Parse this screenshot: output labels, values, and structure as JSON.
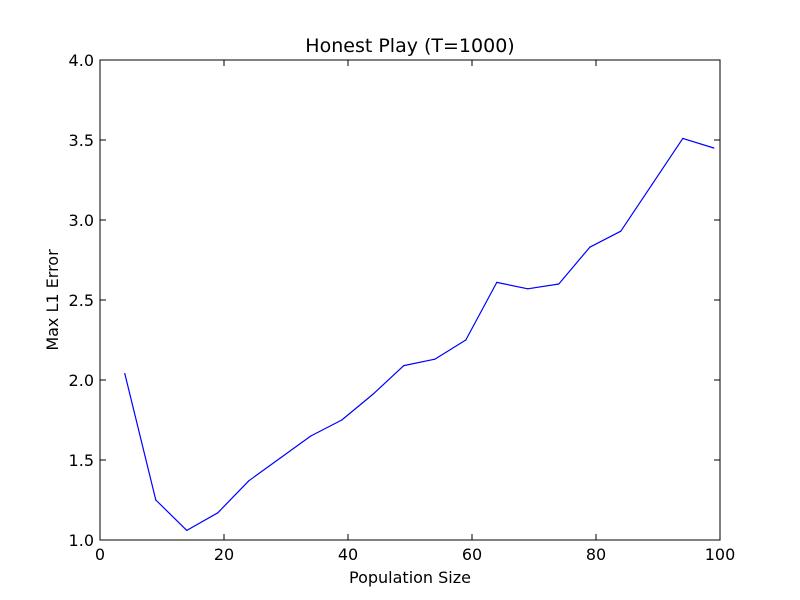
{
  "chart_data": {
    "type": "line",
    "title": "Honest Play (T=1000)",
    "xlabel": "Population Size",
    "ylabel": "Max L1 Error",
    "xlim": [
      0,
      100
    ],
    "ylim": [
      1.0,
      4.0
    ],
    "xticks": [
      0,
      20,
      40,
      60,
      80,
      100
    ],
    "xtick_labels": [
      "0",
      "20",
      "40",
      "60",
      "80",
      "100"
    ],
    "yticks": [
      1.0,
      1.5,
      2.0,
      2.5,
      3.0,
      3.5,
      4.0
    ],
    "ytick_labels": [
      "1.0",
      "1.5",
      "2.0",
      "2.5",
      "3.0",
      "3.5",
      "4.0"
    ],
    "grid": false,
    "legend": "none",
    "series": [
      {
        "color": "#0000ff",
        "x": [
          4,
          9,
          14,
          19,
          24,
          29,
          34,
          39,
          44,
          49,
          54,
          59,
          64,
          69,
          74,
          79,
          84,
          89,
          94,
          99
        ],
        "y": [
          2.04,
          1.25,
          1.06,
          1.17,
          1.37,
          1.51,
          1.65,
          1.75,
          1.91,
          2.09,
          2.13,
          2.25,
          2.61,
          2.57,
          2.6,
          2.83,
          2.93,
          3.22,
          3.51,
          3.45
        ]
      }
    ]
  }
}
